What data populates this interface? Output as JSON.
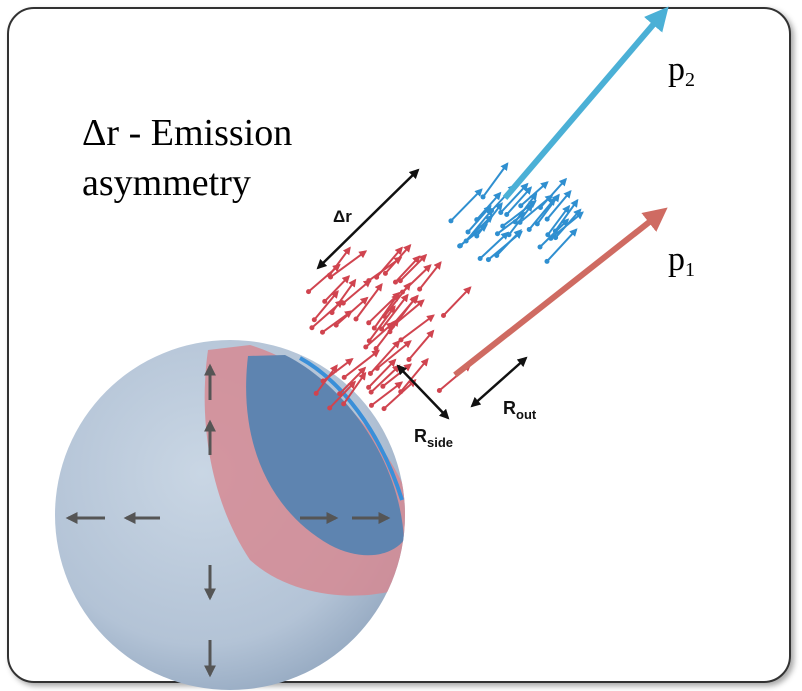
{
  "title": {
    "lines": [
      "Δr - Emission",
      "asymmetry"
    ]
  },
  "labels": {
    "p2": {
      "base": "p",
      "sub": "2"
    },
    "p1": {
      "base": "p",
      "sub": "1"
    },
    "delta_r": "Δr",
    "r_side": {
      "base": "R",
      "sub": "side"
    },
    "r_out": {
      "base": "R",
      "sub": "out"
    }
  }
}
